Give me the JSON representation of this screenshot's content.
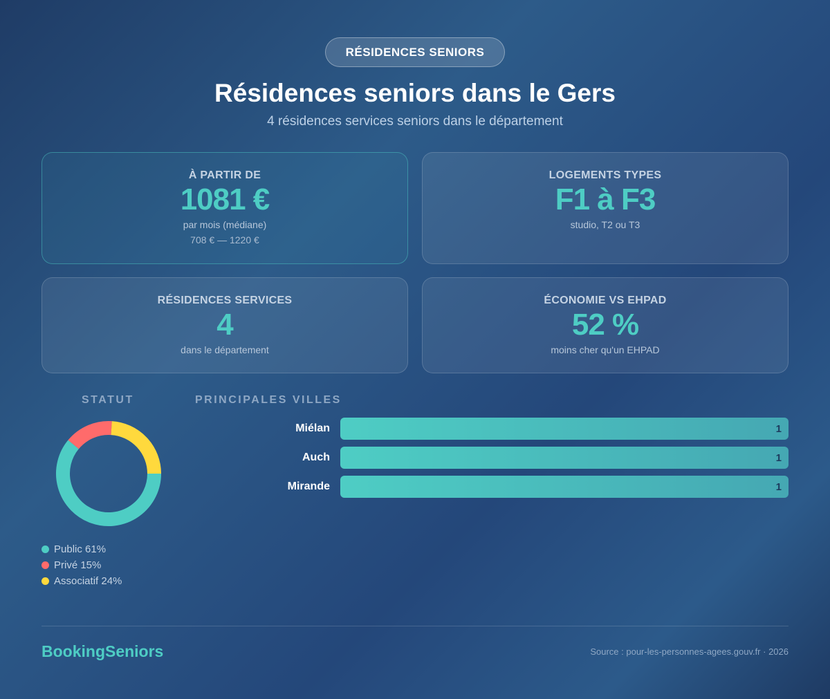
{
  "badge": "RÉSIDENCES SENIORS",
  "title": "Résidences seniors dans le Gers",
  "subtitle": "4 résidences services seniors dans le département",
  "cards": [
    {
      "label": "À PARTIR DE",
      "value": "1081 €",
      "sub1": "par mois (médiane)",
      "sub2": "708 € — 1220 €"
    },
    {
      "label": "LOGEMENTS TYPES",
      "value": "F1 à F3",
      "sub1": "studio, T2 ou T3"
    },
    {
      "label": "RÉSIDENCES SERVICES",
      "value": "4",
      "sub1": "dans le département"
    },
    {
      "label": "ÉCONOMIE VS EHPAD",
      "value": "52 %",
      "sub1": "moins cher qu'un EHPAD"
    }
  ],
  "chart_data": [
    {
      "type": "pie",
      "title": "STATUT",
      "donut": true,
      "slices": [
        {
          "label": "Public",
          "value": 61,
          "text": "Public 61%",
          "color": "#4ecdc4"
        },
        {
          "label": "Privé",
          "value": 15,
          "text": "Privé 15%",
          "color": "#ff6b6b"
        },
        {
          "label": "Associatif",
          "value": 24,
          "text": "Associatif 24%",
          "color": "#ffd93d"
        }
      ]
    },
    {
      "type": "bar",
      "orientation": "horizontal",
      "title": "PRINCIPALES VILLES",
      "categories": [
        "Miélan",
        "Auch",
        "Mirande"
      ],
      "values": [
        1,
        1,
        1
      ],
      "value_labels": [
        "1",
        "1",
        "1"
      ],
      "xlim": [
        0,
        1
      ]
    }
  ],
  "footer": {
    "logo": "BookingSeniors",
    "source": "Source : pour-les-personnes-agees.gouv.fr · 2026"
  }
}
